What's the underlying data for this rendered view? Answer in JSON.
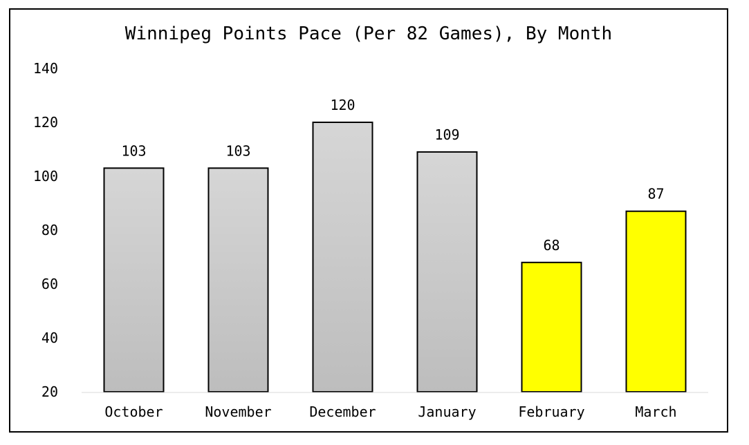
{
  "chart_data": {
    "type": "bar",
    "title": "Winnipeg Points Pace (Per 82 Games), By Month",
    "xlabel": "",
    "ylabel": "",
    "categories": [
      "October",
      "November",
      "December",
      "January",
      "February",
      "March"
    ],
    "values": [
      103,
      103,
      120,
      109,
      68,
      87
    ],
    "data_labels": [
      "103",
      "103",
      "120",
      "109",
      "68",
      "87"
    ],
    "ylim": [
      20,
      140
    ],
    "yticks": [
      20,
      40,
      60,
      80,
      100,
      120,
      140
    ],
    "ytick_labels": [
      "20",
      "40",
      "60",
      "80",
      "100",
      "120",
      "140"
    ],
    "grid": false,
    "legend": "none",
    "colors": {
      "October": "#c8c8c8",
      "November": "#c8c8c8",
      "December": "#c8c8c8",
      "January": "#c8c8c8",
      "February": "#ffff00",
      "March": "#ffff00"
    },
    "bar_gradient_top": "#d6d6d6",
    "bar_gradient_bottom": "#bdbdbd",
    "highlight_color": "#ffff00",
    "axis_line_color": "#d9d9d9"
  }
}
